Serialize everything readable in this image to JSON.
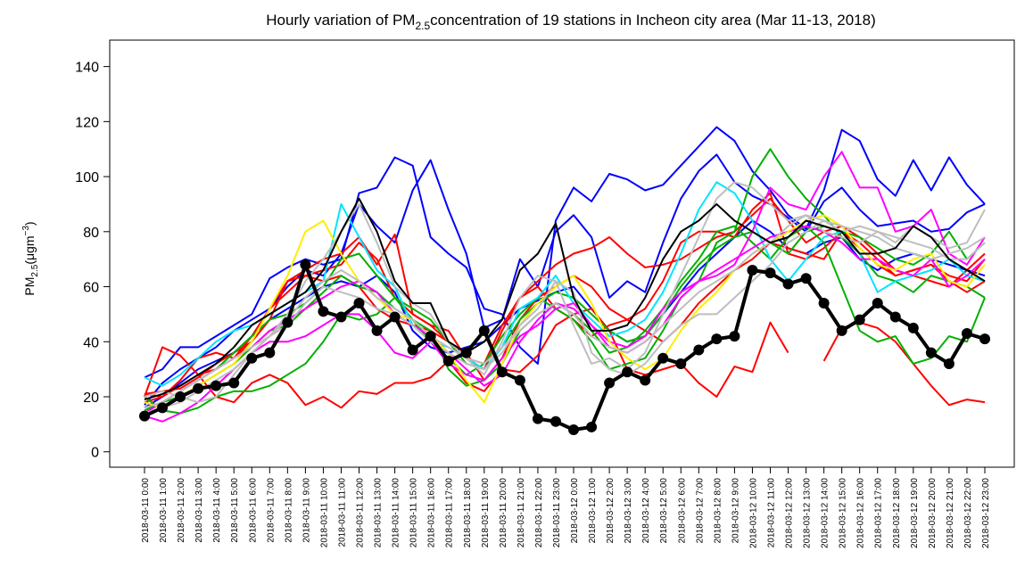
{
  "chart_data": {
    "type": "line",
    "title_parts": [
      "Hourly variation of PM",
      "2.5",
      "concentration of 19 stations in Incheon city area (Mar 11-13, 2018)"
    ],
    "y_label_parts": [
      "PM",
      "2.5",
      "(μgm",
      "−3",
      ")"
    ],
    "categories": [
      "2018-03-11 0:00",
      "2018-03-11 1:00",
      "2018-03-11 2:00",
      "2018-03-11 3:00",
      "2018-03-11 4:00",
      "2018-03-11 5:00",
      "2018-03-11 6:00",
      "2018-03-11 7:00",
      "2018-03-11 8:00",
      "2018-03-11 9:00",
      "2018-03-11 10:00",
      "2018-03-11 11:00",
      "2018-03-11 12:00",
      "2018-03-11 13:00",
      "2018-03-11 14:00",
      "2018-03-11 15:00",
      "2018-03-11 16:00",
      "2018-03-11 17:00",
      "2018-03-11 18:00",
      "2018-03-11 19:00",
      "2018-03-11 20:00",
      "2018-03-11 21:00",
      "2018-03-11 22:00",
      "2018-03-11 23:00",
      "2018-03-12 0:00",
      "2018-03-12 1:00",
      "2018-03-12 2:00",
      "2018-03-12 3:00",
      "2018-03-12 4:00",
      "2018-03-12 5:00",
      "2018-03-12 6:00",
      "2018-03-12 7:00",
      "2018-03-12 8:00",
      "2018-03-12 9:00",
      "2018-03-12 10:00",
      "2018-03-12 11:00",
      "2018-03-12 12:00",
      "2018-03-12 13:00",
      "2018-03-12 14:00",
      "2018-03-12 15:00",
      "2018-03-12 16:00",
      "2018-03-12 17:00",
      "2018-03-12 18:00",
      "2018-03-12 19:00",
      "2018-03-12 20:00",
      "2018-03-12 21:00",
      "2018-03-12 22:00",
      "2018-03-12 23:00"
    ],
    "ylim": [
      -5.6,
      149.6
    ],
    "yticks": [
      0,
      20,
      40,
      60,
      80,
      100,
      120,
      140
    ],
    "series": [
      {
        "color": "#0000ff",
        "values": [
          27,
          30,
          38,
          38,
          42,
          46,
          50,
          63,
          67,
          70,
          68,
          70,
          94,
          96,
          107,
          104,
          78,
          72,
          67,
          52,
          50,
          38,
          32,
          84,
          96,
          91,
          101,
          99,
          95,
          97,
          104,
          111,
          118,
          113,
          102,
          95,
          86,
          81,
          95,
          117,
          113,
          99,
          93,
          106,
          95,
          107,
          97,
          90
        ]
      },
      {
        "color": "#0000ff",
        "values": [
          17,
          25,
          30,
          34,
          38,
          44,
          48,
          52,
          60,
          66,
          64,
          72,
          90,
          82,
          76,
          95,
          106,
          88,
          72,
          45,
          48,
          70,
          60,
          80,
          86,
          78,
          56,
          62,
          58,
          76,
          92,
          102,
          108,
          98,
          93,
          90,
          85,
          80,
          91,
          96,
          88,
          82,
          83,
          84,
          80,
          81,
          87,
          90
        ]
      },
      {
        "color": "#0000ff",
        "values": [
          16,
          20,
          25,
          30,
          33,
          36,
          42,
          48,
          52,
          56,
          60,
          62,
          60,
          64,
          58,
          44,
          38,
          36,
          38,
          40,
          46,
          52,
          55,
          58,
          60,
          52,
          44,
          40,
          42,
          50,
          58,
          66,
          72,
          78,
          84,
          80,
          74,
          72,
          76,
          78,
          70,
          66,
          70,
          72,
          70,
          68,
          66,
          64
        ]
      },
      {
        "color": "#ff0000",
        "values": [
          20,
          38,
          35,
          28,
          20,
          18,
          25,
          28,
          25,
          17,
          20,
          16,
          22,
          21,
          25,
          25,
          27,
          33,
          25,
          22,
          30,
          29,
          35,
          46,
          50,
          52,
          44,
          30,
          28,
          30,
          32,
          25,
          20,
          31,
          29,
          47,
          36,
          null,
          33,
          45,
          47,
          45,
          40,
          32,
          24,
          17,
          19,
          18
        ]
      },
      {
        "color": "#ff0000",
        "values": [
          21,
          22,
          23,
          27,
          32,
          36,
          40,
          48,
          62,
          66,
          70,
          72,
          78,
          68,
          79,
          50,
          46,
          44,
          34,
          30,
          44,
          56,
          62,
          68,
          72,
          74,
          78,
          72,
          67,
          68,
          70,
          74,
          78,
          80,
          86,
          92,
          84,
          76,
          80,
          82,
          78,
          72,
          66,
          64,
          62,
          60,
          66,
          72
        ]
      },
      {
        "color": "#ff0000",
        "values": [
          18,
          20,
          24,
          28,
          30,
          34,
          42,
          52,
          58,
          64,
          62,
          64,
          60,
          52,
          48,
          46,
          44,
          40,
          36,
          26,
          34,
          48,
          56,
          60,
          64,
          60,
          52,
          48,
          44,
          40,
          46,
          54,
          60,
          66,
          70,
          76,
          74,
          72,
          70,
          80,
          76,
          70,
          64,
          66,
          68,
          62,
          58,
          62
        ]
      },
      {
        "color": "#ff0000",
        "values": [
          21,
          20,
          26,
          34,
          36,
          34,
          40,
          52,
          62,
          64,
          66,
          68,
          76,
          70,
          56,
          50,
          46,
          40,
          34,
          32,
          46,
          56,
          60,
          52,
          48,
          42,
          46,
          48,
          52,
          62,
          76,
          80,
          80,
          78,
          88,
          94,
          72,
          70,
          74,
          80,
          74,
          68,
          64,
          66,
          68,
          64,
          62,
          70
        ]
      },
      {
        "color": "#00b000",
        "values": [
          20,
          15,
          14,
          16,
          20,
          22,
          22,
          24,
          28,
          32,
          40,
          50,
          48,
          50,
          56,
          48,
          40,
          34,
          28,
          32,
          42,
          50,
          56,
          52,
          48,
          40,
          30,
          32,
          34,
          44,
          56,
          62,
          76,
          80,
          100,
          110,
          100,
          92,
          86,
          78,
          72,
          64,
          62,
          58,
          64,
          62,
          60,
          56
        ]
      },
      {
        "color": "#00b000",
        "values": [
          16,
          18,
          20,
          24,
          28,
          32,
          38,
          44,
          46,
          52,
          58,
          64,
          60,
          58,
          52,
          48,
          44,
          30,
          24,
          26,
          32,
          44,
          50,
          54,
          50,
          44,
          36,
          38,
          44,
          52,
          62,
          70,
          80,
          82,
          76,
          70,
          78,
          82,
          76,
          60,
          44,
          40,
          42,
          32,
          34,
          42,
          40,
          56
        ]
      },
      {
        "color": "#00b000",
        "values": [
          15,
          18,
          22,
          26,
          30,
          36,
          42,
          48,
          50,
          54,
          60,
          70,
          72,
          64,
          56,
          52,
          48,
          40,
          32,
          30,
          38,
          48,
          54,
          58,
          56,
          50,
          44,
          40,
          42,
          50,
          60,
          68,
          74,
          78,
          80,
          76,
          72,
          80,
          82,
          80,
          78,
          74,
          70,
          68,
          72,
          80,
          70,
          76
        ]
      },
      {
        "color": "#00e5ff",
        "values": [
          27,
          24,
          28,
          34,
          40,
          44,
          46,
          50,
          54,
          58,
          62,
          90,
          78,
          66,
          60,
          46,
          40,
          38,
          34,
          30,
          38,
          52,
          56,
          64,
          54,
          48,
          42,
          44,
          48,
          58,
          72,
          88,
          98,
          94,
          84,
          70,
          62,
          70,
          78,
          80,
          72,
          58,
          62,
          64,
          66,
          70,
          64,
          62
        ]
      },
      {
        "color": "#ff00ff",
        "values": [
          13,
          11,
          14,
          18,
          24,
          30,
          36,
          40,
          40,
          42,
          46,
          50,
          50,
          44,
          36,
          34,
          40,
          32,
          28,
          26,
          34,
          42,
          46,
          52,
          54,
          46,
          40,
          38,
          42,
          52,
          58,
          62,
          64,
          68,
          80,
          96,
          90,
          88,
          100,
          109,
          96,
          96,
          80,
          82,
          88,
          72,
          68,
          78
        ]
      },
      {
        "color": "#ff00ff",
        "values": [
          14,
          18,
          22,
          26,
          30,
          34,
          38,
          44,
          48,
          52,
          56,
          60,
          62,
          58,
          50,
          46,
          42,
          36,
          30,
          24,
          28,
          40,
          48,
          54,
          52,
          46,
          38,
          36,
          40,
          46,
          56,
          62,
          66,
          70,
          74,
          78,
          80,
          82,
          80,
          76,
          70,
          70,
          66,
          64,
          70,
          60,
          64,
          70
        ]
      },
      {
        "color": "#ffee00",
        "values": [
          18,
          16,
          20,
          24,
          28,
          32,
          40,
          52,
          64,
          80,
          84,
          72,
          62,
          56,
          50,
          48,
          42,
          36,
          26,
          18,
          32,
          46,
          54,
          60,
          64,
          54,
          40,
          34,
          30,
          34,
          44,
          52,
          58,
          66,
          72,
          76,
          80,
          84,
          86,
          82,
          74,
          68,
          66,
          70,
          72,
          62,
          60,
          68
        ]
      },
      {
        "color": "#bebebe",
        "values": [
          20,
          22,
          20,
          18,
          20,
          28,
          36,
          42,
          50,
          62,
          70,
          80,
          90,
          76,
          60,
          54,
          50,
          40,
          34,
          28,
          40,
          56,
          64,
          62,
          46,
          32,
          34,
          30,
          36,
          50,
          64,
          78,
          92,
          98,
          96,
          90,
          84,
          86,
          84,
          80,
          82,
          80,
          76,
          82,
          78,
          74,
          76,
          88
        ]
      },
      {
        "color": "#bebebe",
        "values": [
          16,
          18,
          22,
          26,
          30,
          34,
          38,
          42,
          46,
          54,
          60,
          58,
          56,
          52,
          50,
          46,
          40,
          36,
          32,
          30,
          36,
          46,
          52,
          62,
          58,
          36,
          30,
          28,
          32,
          40,
          46,
          50,
          50,
          56,
          62,
          68,
          76,
          80,
          84,
          82,
          80,
          78,
          74,
          72,
          70,
          72,
          74,
          78
        ]
      },
      {
        "color": "#bebebe",
        "values": [
          14,
          16,
          18,
          22,
          26,
          30,
          36,
          42,
          48,
          56,
          62,
          66,
          62,
          56,
          52,
          48,
          42,
          38,
          34,
          32,
          38,
          44,
          50,
          54,
          50,
          42,
          38,
          36,
          40,
          46,
          52,
          58,
          62,
          66,
          72,
          76,
          82,
          86,
          80,
          78,
          76,
          80,
          78,
          76,
          74,
          70,
          70,
          76
        ]
      },
      {
        "color": "#000000",
        "values": [
          19,
          21,
          24,
          28,
          32,
          38,
          46,
          50,
          54,
          58,
          66,
          80,
          92,
          80,
          62,
          54,
          54,
          40,
          36,
          40,
          48,
          66,
          72,
          83,
          56,
          44,
          44,
          46,
          56,
          70,
          80,
          84,
          90,
          84,
          80,
          76,
          78,
          84,
          82,
          80,
          72,
          72,
          74,
          82,
          78,
          70,
          66,
          62
        ]
      },
      {
        "color": "#000000",
        "markers": "circle",
        "values": [
          13,
          16,
          20,
          23,
          24,
          25,
          34,
          36,
          47,
          68,
          51,
          49,
          54,
          44,
          49,
          37,
          42,
          33,
          36,
          44,
          29,
          26,
          12,
          11,
          8,
          9,
          25,
          29,
          26,
          34,
          32,
          37,
          41,
          42,
          66,
          65,
          61,
          63,
          54,
          44,
          48,
          54,
          49,
          45,
          36,
          32,
          43,
          41
        ]
      }
    ]
  }
}
